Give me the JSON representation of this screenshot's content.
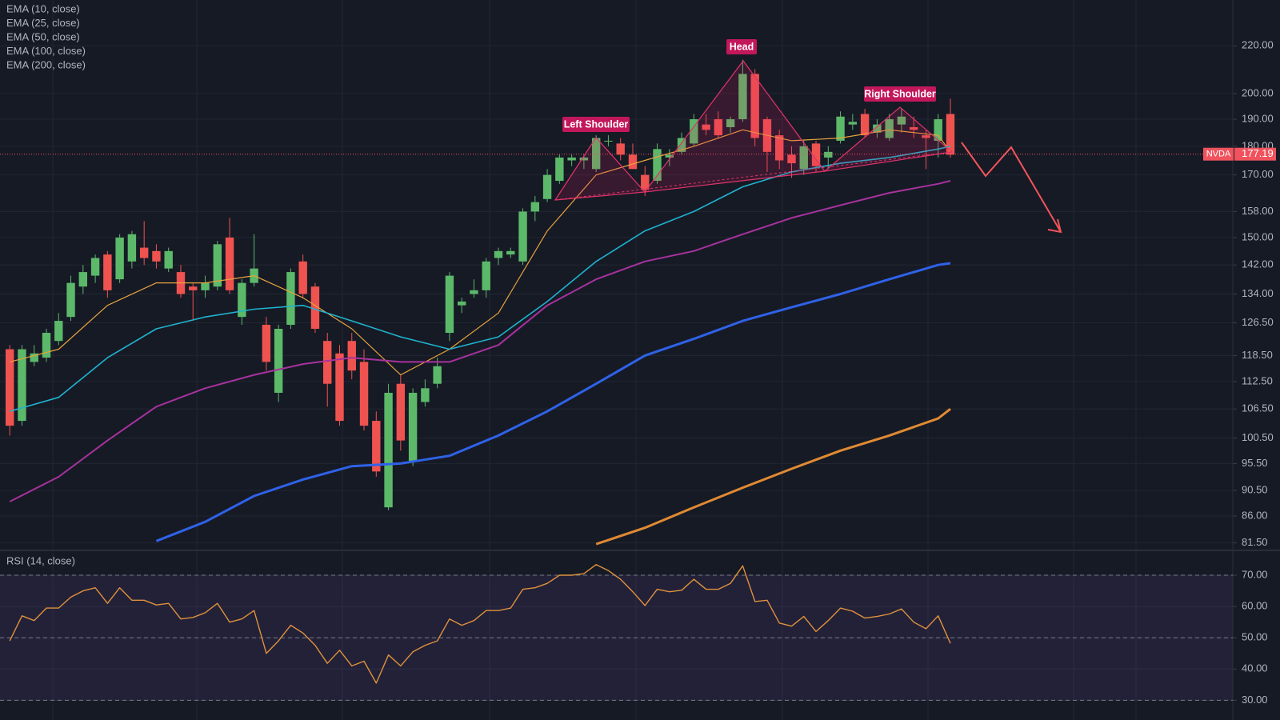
{
  "chart_data": [
    {
      "type": "candlestick",
      "open": [
        120,
        104,
        117,
        118,
        122,
        128,
        136,
        139,
        145,
        138,
        143,
        147,
        146,
        141,
        140,
        136,
        135,
        136,
        150,
        128,
        137,
        126,
        110,
        126,
        143,
        136,
        122,
        119,
        122,
        117,
        104,
        87.5,
        112,
        96,
        108,
        112,
        124,
        131,
        134,
        135,
        144,
        145,
        143,
        158,
        162,
        168,
        175,
        175,
        172,
        182,
        181,
        177,
        170,
        168,
        176,
        178,
        181,
        188,
        190,
        187,
        190,
        208,
        190,
        184,
        177,
        172,
        181,
        176,
        182,
        188,
        192,
        185,
        183,
        188,
        187,
        184,
        182,
        192
      ],
      "high": [
        121,
        121,
        121,
        125,
        129,
        139,
        142,
        145,
        146,
        151,
        152,
        155,
        148,
        147,
        142,
        137,
        139,
        149,
        156,
        138,
        151,
        128,
        126,
        141,
        145,
        137,
        124,
        121,
        124,
        120,
        106,
        112,
        114,
        111,
        113,
        118,
        140,
        133,
        138,
        144,
        147,
        147,
        159,
        163,
        172,
        177,
        177,
        177,
        184,
        184,
        183,
        181,
        173,
        181,
        179,
        185,
        192,
        192,
        193,
        191,
        214,
        210,
        191,
        186,
        180,
        182,
        182,
        180,
        193,
        192,
        194,
        190,
        192,
        194,
        191,
        186,
        192,
        198
      ],
      "low": [
        101,
        103,
        116,
        117,
        121,
        127,
        134,
        137,
        133,
        137,
        141,
        142,
        141,
        140,
        133,
        127,
        133,
        135,
        134,
        126,
        136,
        115,
        108,
        125,
        133,
        124,
        107,
        103,
        113,
        102,
        93,
        87,
        98,
        95,
        107,
        111,
        122,
        129,
        133,
        133,
        142,
        144,
        142,
        155,
        161,
        167,
        173,
        172,
        171,
        180,
        175,
        172,
        163,
        167,
        173,
        177,
        180,
        184,
        183,
        185,
        189,
        180,
        171,
        172,
        169,
        170,
        171,
        172,
        181,
        186,
        183,
        183,
        182,
        185,
        183,
        172,
        176,
        176
      ],
      "close": [
        103,
        120,
        119,
        124,
        127,
        137,
        140,
        144,
        135,
        150,
        151,
        144,
        143,
        146,
        134,
        135,
        137,
        148,
        135,
        137,
        141,
        117,
        125,
        140,
        134,
        125,
        112,
        104,
        115,
        103,
        94,
        110,
        100,
        110,
        111,
        116,
        139,
        132,
        135,
        143,
        146,
        146,
        158,
        161,
        170,
        176,
        176,
        176,
        183,
        182,
        177,
        172,
        165,
        179,
        177,
        183,
        190,
        186,
        184,
        190,
        208,
        183,
        178,
        175,
        174,
        180,
        173,
        178,
        191,
        189,
        184,
        188,
        190,
        191,
        186,
        183,
        190,
        177
      ],
      "up_color": "#5cb96a",
      "down_color": "#ef5350",
      "series": [
        {
          "name": "EMA (10, close)",
          "color": "#e8a33d",
          "width": 1.2,
          "x": [
            0,
            4,
            8,
            12,
            16,
            20,
            24,
            28,
            32,
            36,
            40,
            44,
            48,
            52,
            56,
            60,
            64,
            68,
            72,
            76,
            77
          ],
          "values": [
            117,
            120,
            131,
            137,
            137,
            139,
            133,
            125,
            114,
            120,
            129,
            152,
            170,
            175,
            180,
            186,
            182,
            183,
            186,
            184,
            178
          ]
        },
        {
          "name": "EMA (25, close)",
          "color": "#1fb3cf",
          "width": 1.6,
          "x": [
            0,
            4,
            8,
            12,
            16,
            20,
            24,
            28,
            32,
            36,
            40,
            44,
            48,
            52,
            56,
            60,
            64,
            68,
            72,
            76,
            77
          ],
          "values": [
            106,
            109,
            118,
            125,
            128,
            130,
            131,
            127,
            123,
            120,
            123,
            132,
            143,
            152,
            158,
            166,
            171,
            174,
            176,
            179,
            180
          ]
        },
        {
          "name": "EMA (50, close)",
          "color": "#a8329e",
          "width": 2,
          "x": [
            0,
            4,
            8,
            12,
            16,
            20,
            24,
            28,
            32,
            36,
            40,
            44,
            48,
            52,
            56,
            60,
            64,
            68,
            72,
            76,
            77
          ],
          "values": [
            88.5,
            93,
            100,
            107,
            111,
            114,
            116.5,
            118,
            117,
            117,
            121,
            131,
            138,
            143,
            146,
            151,
            156,
            160,
            164,
            167,
            168
          ]
        },
        {
          "name": "EMA (100, close)",
          "color": "#2f62e8",
          "width": 3,
          "x": [
            12,
            16,
            20,
            24,
            28,
            32,
            36,
            40,
            44,
            48,
            52,
            56,
            60,
            64,
            68,
            72,
            76,
            77
          ],
          "values": [
            81.8,
            85,
            89.5,
            92.5,
            95,
            95.5,
            97,
            101,
            106,
            112,
            118.5,
            122.5,
            127,
            130.5,
            134,
            138,
            142,
            142.5
          ]
        },
        {
          "name": "EMA (200, close)",
          "color": "#e08a32",
          "width": 3,
          "x": [
            48,
            52,
            56,
            60,
            64,
            68,
            72,
            76,
            77
          ],
          "values": [
            81.3,
            84,
            87.5,
            91,
            94.5,
            98,
            101,
            104.5,
            106.5
          ]
        }
      ],
      "log_scale": true,
      "grid": true,
      "ylim": [
        80.8,
        241.1
      ],
      "yticks": [
        {
          "value": 220,
          "label": "220.00"
        },
        {
          "value": 200,
          "label": "200.00"
        },
        {
          "value": 190,
          "label": "190.00"
        },
        {
          "value": 180,
          "label": "180.00"
        },
        {
          "value": 170,
          "label": "170.00"
        },
        {
          "value": 158,
          "label": "158.00"
        },
        {
          "value": 150,
          "label": "150.00"
        },
        {
          "value": 142,
          "label": "142.00"
        },
        {
          "value": 134,
          "label": "134.00"
        },
        {
          "value": 126.5,
          "label": "126.50"
        },
        {
          "value": 118.5,
          "label": "118.50"
        },
        {
          "value": 112.5,
          "label": "112.50"
        },
        {
          "value": 106.5,
          "label": "106.50"
        },
        {
          "value": 100.5,
          "label": "100.50"
        },
        {
          "value": 95.5,
          "label": "95.50"
        },
        {
          "value": 90.5,
          "label": "90.50"
        },
        {
          "value": 86,
          "label": "86.00"
        },
        {
          "value": 81.5,
          "label": "81.50"
        }
      ],
      "price_line": {
        "label": "NVDA",
        "value": 177.19,
        "color": "#f0535d"
      },
      "annotations": [
        "Left Shoulder",
        "Head",
        "Right Shoulder"
      ]
    },
    {
      "type": "line",
      "series": [
        {
          "name": "RSI (14, close)",
          "color": "#e0913c",
          "values": [
            49,
            57,
            55.5,
            59.5,
            59.5,
            63,
            65,
            66,
            61,
            66,
            62,
            62,
            60.5,
            61,
            56,
            56.5,
            58,
            61,
            55,
            56,
            58.7,
            45,
            49,
            54,
            51.5,
            47.6,
            41.8,
            46,
            41,
            42.5,
            35.5,
            44.5,
            41,
            45.5,
            47.6,
            49,
            56,
            54,
            55.5,
            58.7,
            58.7,
            59.5,
            65.5,
            66,
            67.4,
            70,
            70,
            70.5,
            73.4,
            71.5,
            68.7,
            64.7,
            60.3,
            65.5,
            64.7,
            65.2,
            68.7,
            65.5,
            65.5,
            67.4,
            73,
            61.6,
            62,
            54.7,
            53.7,
            56.8,
            52,
            55.5,
            59.5,
            58.5,
            56.3,
            56.8,
            57.6,
            59.2,
            55,
            52.9,
            57,
            48.2
          ]
        }
      ],
      "grid": true,
      "ylim": [
        23.7,
        76.4
      ],
      "yticks": [
        {
          "value": 70,
          "label": "70.00"
        },
        {
          "value": 60,
          "label": "60.00"
        },
        {
          "value": 50,
          "label": "50.00"
        },
        {
          "value": 40,
          "label": "40.00"
        },
        {
          "value": 30,
          "label": "30.00"
        }
      ],
      "band": [
        30,
        70
      ],
      "reference_lines": [
        30,
        50,
        70
      ]
    }
  ]
}
